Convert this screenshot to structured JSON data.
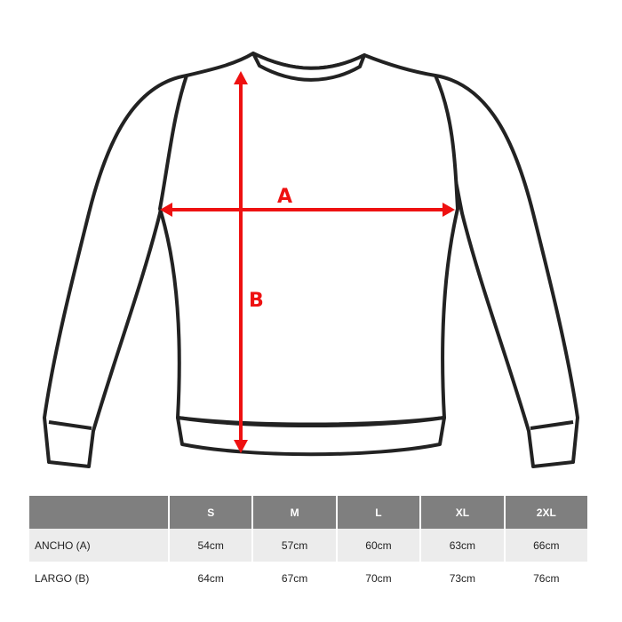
{
  "diagram": {
    "label_a": "A",
    "label_b": "B",
    "arrow_color": "#ee1111",
    "outline_color": "#222222"
  },
  "size_table": {
    "header_color": "#7f7f7f",
    "columns": [
      "",
      "S",
      "M",
      "L",
      "XL",
      "2XL"
    ],
    "rows": [
      {
        "label": "ANCHO (A)",
        "values": [
          "54cm",
          "57cm",
          "60cm",
          "63cm",
          "66cm"
        ]
      },
      {
        "label": "LARGO (B)",
        "values": [
          "64cm",
          "67cm",
          "70cm",
          "73cm",
          "76cm"
        ]
      }
    ]
  }
}
